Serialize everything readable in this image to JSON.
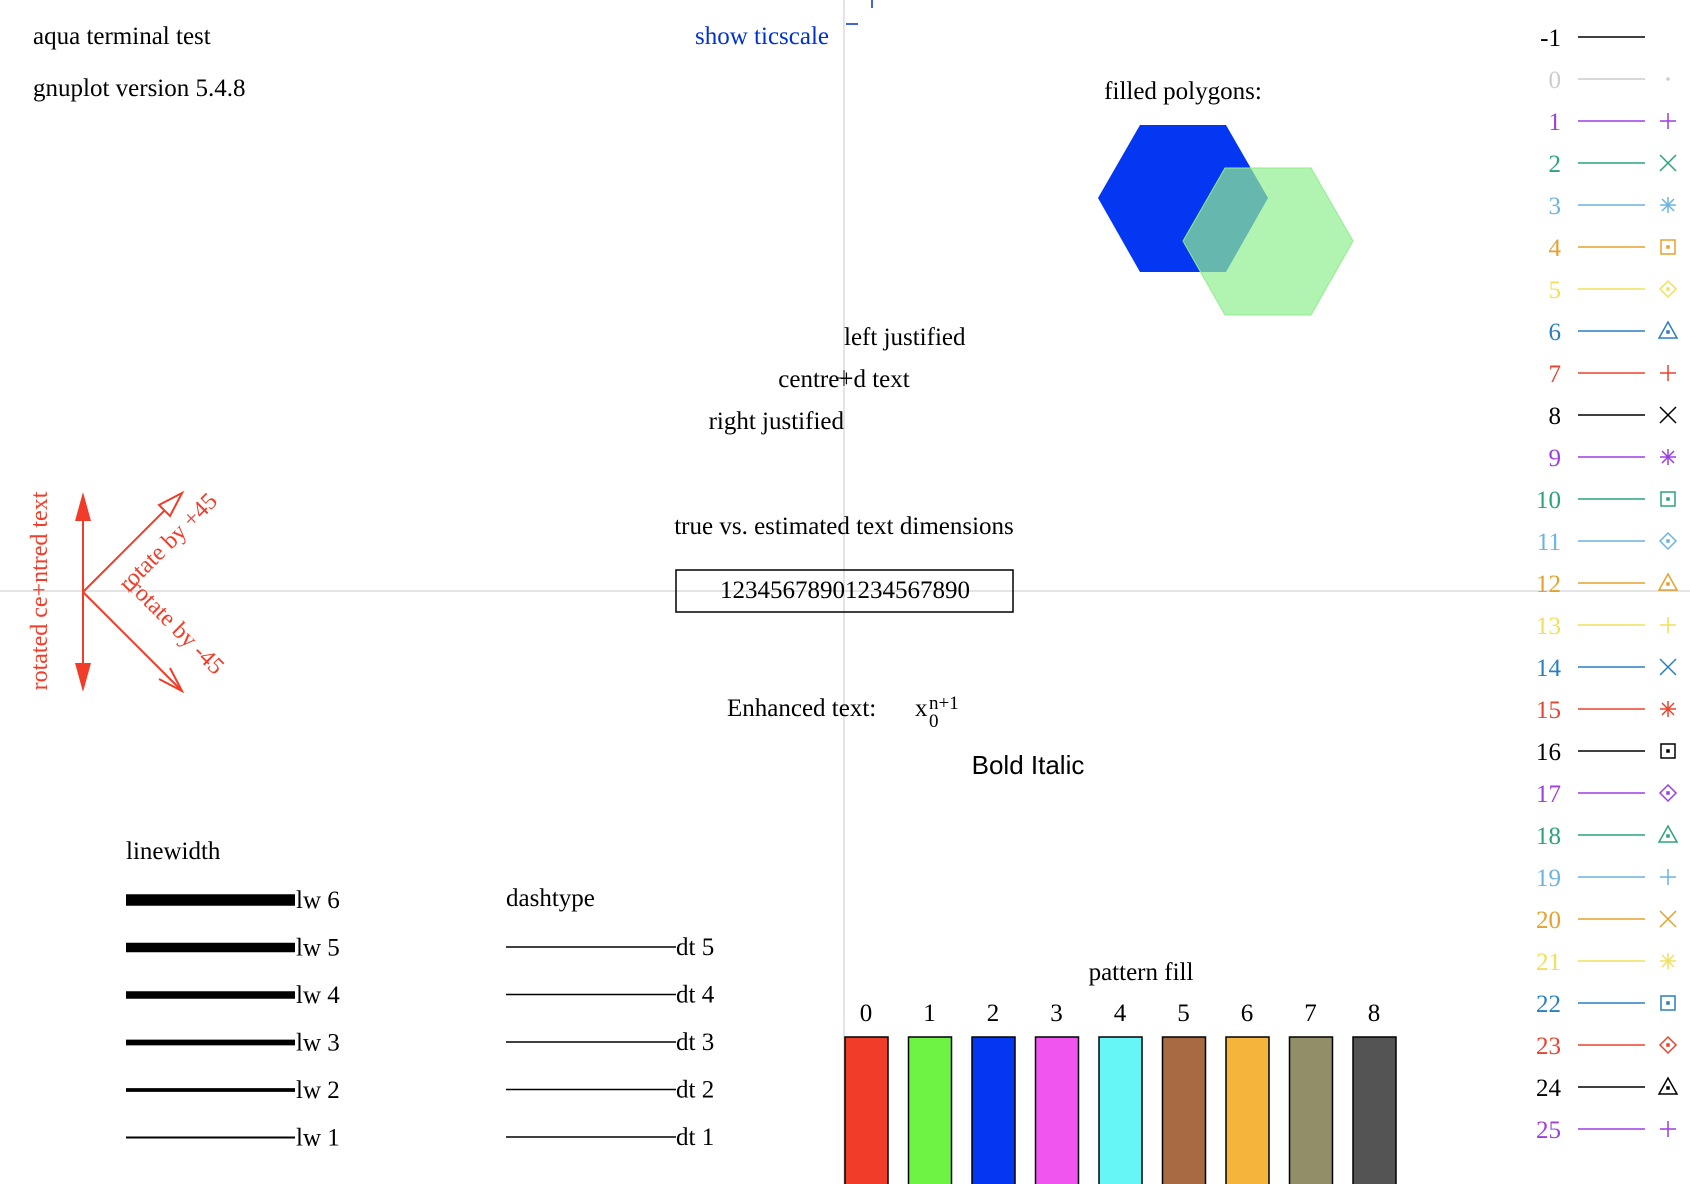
{
  "header": {
    "terminal_title": "aqua  terminal test",
    "version": "gnuplot version 5.4.8",
    "ticscale_label": "show ticscale",
    "ticscale_color": "#0033cc"
  },
  "polygons": {
    "title": "filled polygons:",
    "hex1_color": "#0437f2",
    "hex2_color": "#90ee90"
  },
  "justify": {
    "left": "left justified",
    "centre": "centre+d text",
    "right": "right justified"
  },
  "dimensions": {
    "title": "true vs. estimated text dimensions",
    "sample": "12345678901234567890"
  },
  "rotation": {
    "color": "#f03c28",
    "vertical": "rotated ce+ntred text",
    "plus45": "rotate by +45",
    "minus45": "rotate by -45"
  },
  "enhanced": {
    "label": "Enhanced text:",
    "base": "x",
    "sup": "n+1",
    "sub": "0",
    "bold_italic": "Bold Italic"
  },
  "linewidth": {
    "title": "linewidth",
    "items": [
      {
        "label": "lw 6",
        "width": 6
      },
      {
        "label": "lw 5",
        "width": 5
      },
      {
        "label": "lw 4",
        "width": 4
      },
      {
        "label": "lw 3",
        "width": 3
      },
      {
        "label": "lw 2",
        "width": 2
      },
      {
        "label": "lw 1",
        "width": 1
      }
    ]
  },
  "dashtype": {
    "title": "dashtype",
    "items": [
      "dt 5",
      "dt 4",
      "dt 3",
      "dt 2",
      "dt 1"
    ]
  },
  "pattern": {
    "title": "pattern fill",
    "items": [
      {
        "label": "0",
        "color": "#f03c28"
      },
      {
        "label": "1",
        "color": "#6ef243"
      },
      {
        "label": "2",
        "color": "#0437f2"
      },
      {
        "label": "3",
        "color": "#f055f0"
      },
      {
        "label": "4",
        "color": "#66f6f6"
      },
      {
        "label": "5",
        "color": "#a86a43"
      },
      {
        "label": "6",
        "color": "#f5b43c"
      },
      {
        "label": "7",
        "color": "#928e67"
      },
      {
        "label": "8",
        "color": "#545454"
      }
    ]
  },
  "linetypes": [
    {
      "label": "-1",
      "color": "#000000",
      "point": "none"
    },
    {
      "label": "0",
      "color": "#cccccc",
      "point": "dot"
    },
    {
      "label": "1",
      "color": "#9b3fe0",
      "point": "plus"
    },
    {
      "label": "2",
      "color": "#2ca37b",
      "point": "cross"
    },
    {
      "label": "3",
      "color": "#6ab4e0",
      "point": "star"
    },
    {
      "label": "4",
      "color": "#e6a02c",
      "point": "box"
    },
    {
      "label": "5",
      "color": "#f0e05a",
      "point": "diamond"
    },
    {
      "label": "6",
      "color": "#2a7fbf",
      "point": "triangle"
    },
    {
      "label": "7",
      "color": "#e8432e",
      "point": "plus"
    },
    {
      "label": "8",
      "color": "#000000",
      "point": "cross"
    },
    {
      "label": "9",
      "color": "#9b3fe0",
      "point": "star"
    },
    {
      "label": "10",
      "color": "#2ca37b",
      "point": "box"
    },
    {
      "label": "11",
      "color": "#6ab4e0",
      "point": "diamond"
    },
    {
      "label": "12",
      "color": "#e6a02c",
      "point": "triangle"
    },
    {
      "label": "13",
      "color": "#f0e05a",
      "point": "plus"
    },
    {
      "label": "14",
      "color": "#2a7fbf",
      "point": "cross"
    },
    {
      "label": "15",
      "color": "#e8432e",
      "point": "star"
    },
    {
      "label": "16",
      "color": "#000000",
      "point": "box"
    },
    {
      "label": "17",
      "color": "#9b3fe0",
      "point": "diamond"
    },
    {
      "label": "18",
      "color": "#2ca37b",
      "point": "triangle"
    },
    {
      "label": "19",
      "color": "#6ab4e0",
      "point": "plus"
    },
    {
      "label": "20",
      "color": "#e6a02c",
      "point": "cross"
    },
    {
      "label": "21",
      "color": "#f0e05a",
      "point": "star"
    },
    {
      "label": "22",
      "color": "#2a7fbf",
      "point": "box"
    },
    {
      "label": "23",
      "color": "#e8432e",
      "point": "diamond"
    },
    {
      "label": "24",
      "color": "#000000",
      "point": "triangle"
    },
    {
      "label": "25",
      "color": "#9b3fe0",
      "point": "plus"
    }
  ]
}
